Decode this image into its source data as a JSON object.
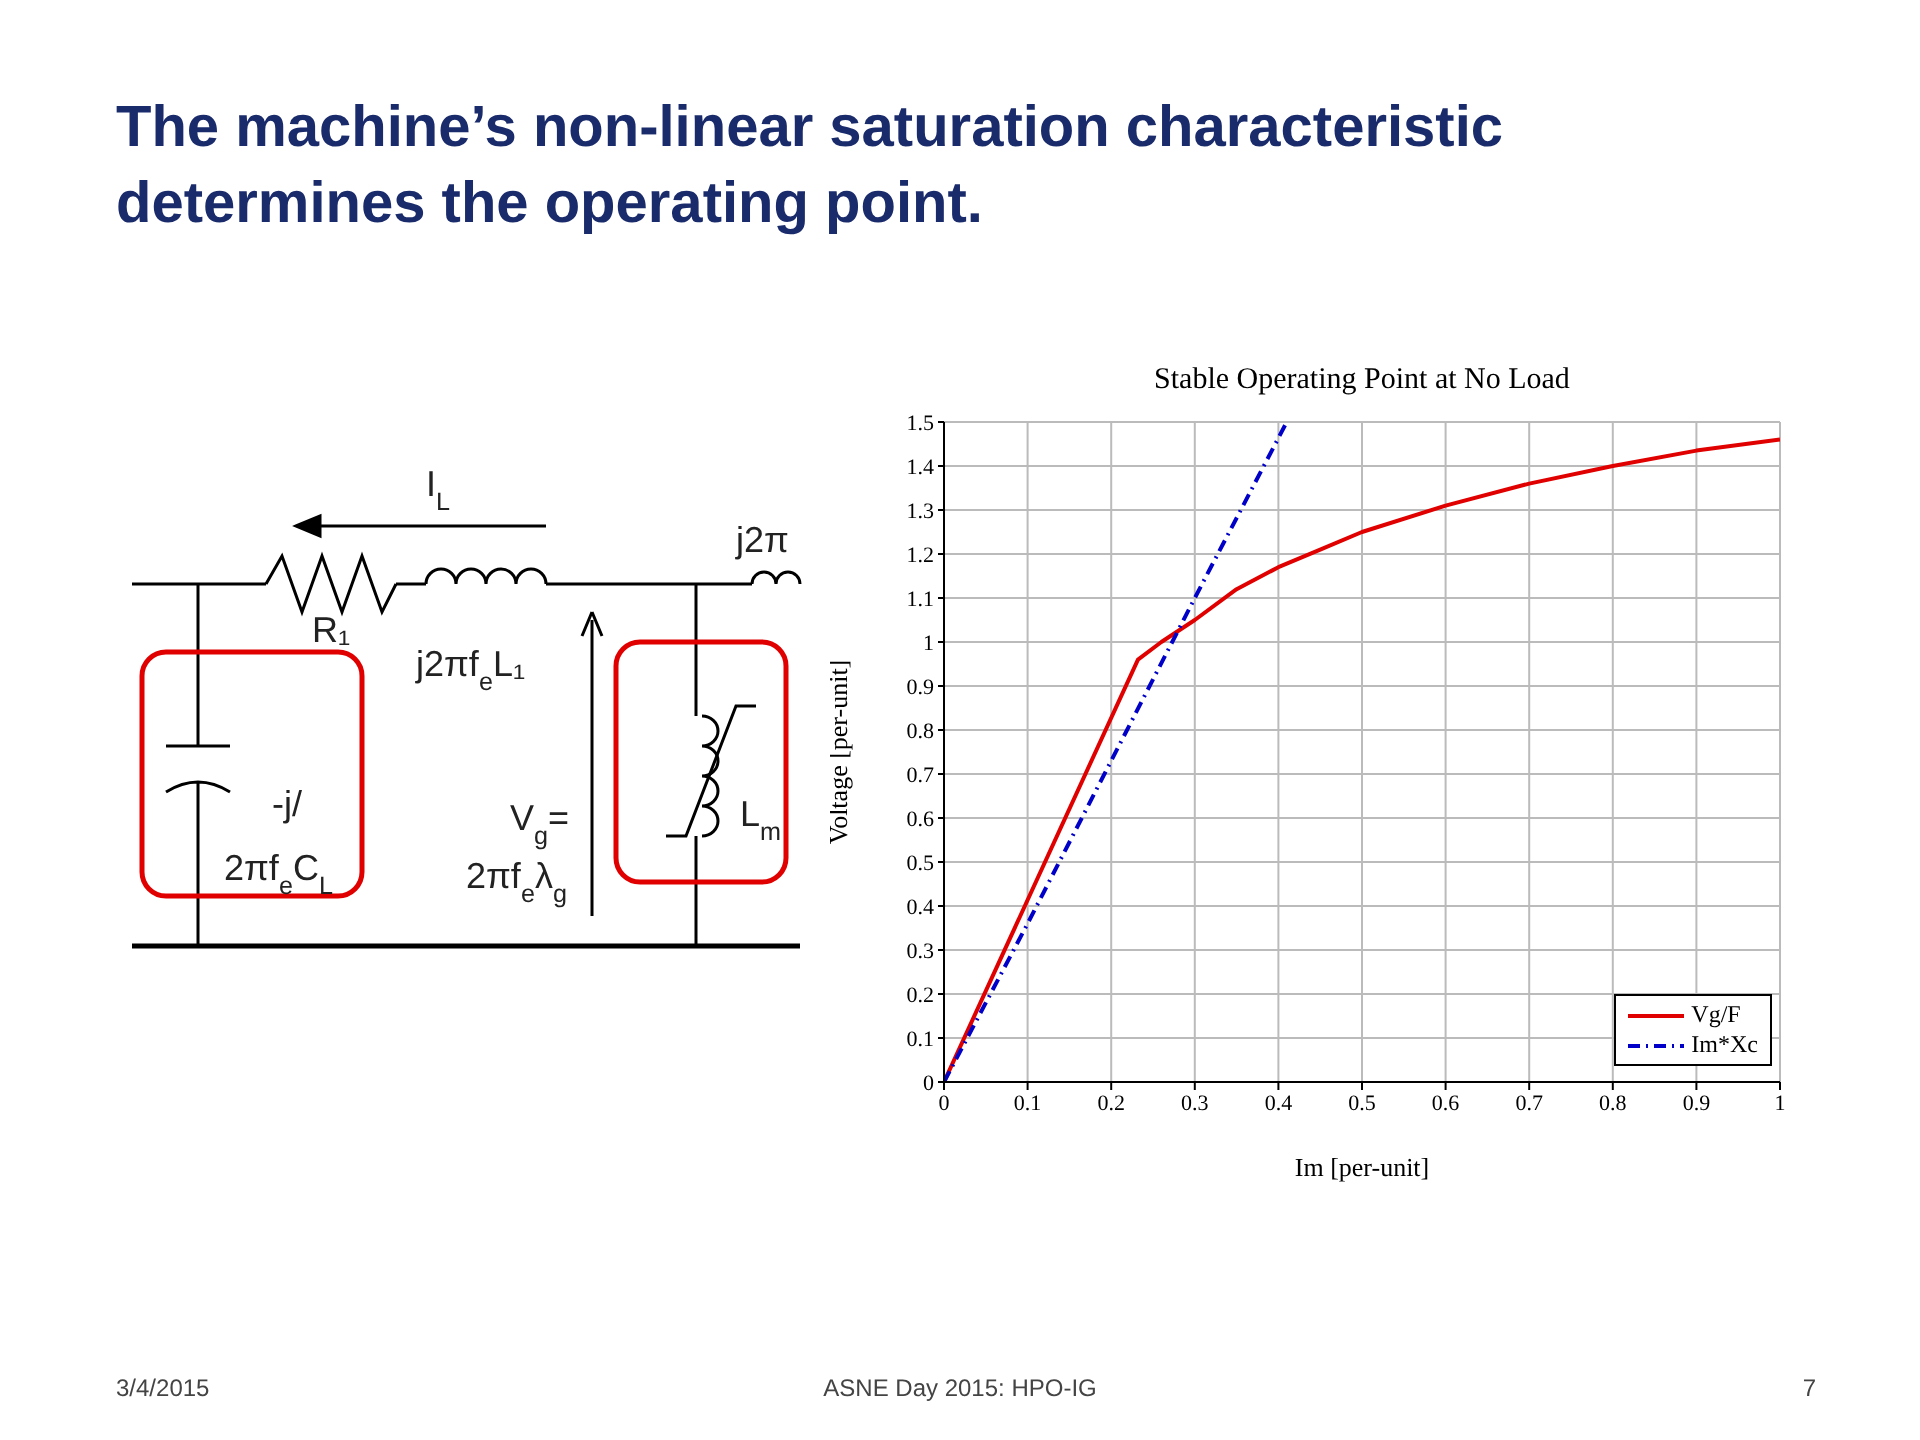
{
  "chart_data": {
    "type": "line",
    "title": "The machine’s non-linear saturation characteristic determines the operating point.",
    "subtitle": "Stable Operating Point at No Load",
    "xlabel": "Im [per-unit]",
    "ylabel": "Voltage [per-unit]",
    "series": [
      {
        "name": "Vg/F",
        "color": "#e00000",
        "line_style": "solid",
        "x": [
          0,
          0.232,
          0.26,
          0.3,
          0.35,
          0.4,
          0.45,
          0.5,
          0.6,
          0.7,
          0.8,
          0.9,
          1
        ],
        "values": [
          0,
          0.96,
          1.0,
          1.05,
          1.12,
          1.17,
          1.21,
          1.25,
          1.31,
          1.36,
          1.4,
          1.435,
          1.46
        ]
      },
      {
        "name": "Im*Xc",
        "color": "#0000c8",
        "line_style": "dashed",
        "x": [
          0,
          0.1,
          0.2,
          0.3,
          0.41
        ],
        "values": [
          0,
          0.36,
          0.73,
          1.1,
          1.5
        ]
      }
    ],
    "xlim": [
      0,
      1
    ],
    "xticks": [
      0,
      0.1,
      0.2,
      0.3,
      0.4,
      0.5,
      0.6,
      0.7,
      0.8,
      0.9,
      1
    ],
    "ylim": [
      0,
      1.5
    ],
    "yticks": [
      0,
      0.1,
      0.2,
      0.3,
      0.4,
      0.5,
      0.6,
      0.7,
      0.8,
      0.9,
      1,
      1.1,
      1.2,
      1.3,
      1.4,
      1.5
    ],
    "grid": true,
    "legend": "bottom right",
    "marker": "none",
    "annotations": [
      "I$_{L}$",
      "R₁",
      "j2πf$_{e}$L₁",
      "j2π",
      "-j/",
      "2πf$_{e}$C$_{L}$",
      "V$_{g}$=",
      "2πf$_{e}$λ$_{g}$",
      "L$_{m}$",
      "3/4/2015",
      "ASNE Day 2015: HPO-IG",
      "7"
    ]
  }
}
